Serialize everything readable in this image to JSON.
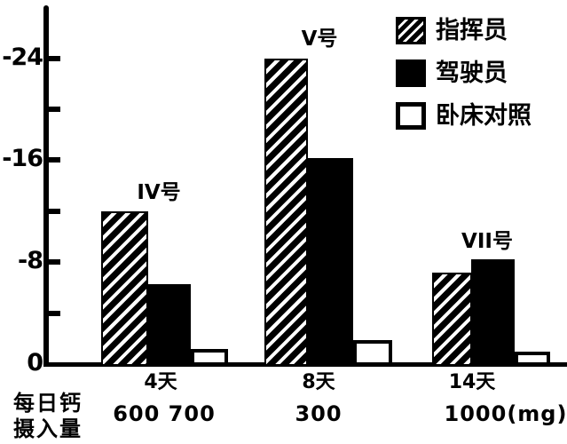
{
  "chart_data": {
    "type": "bar",
    "title": "",
    "categories": [
      "IV号",
      "V号",
      "VII号"
    ],
    "series": [
      {
        "name": "指挥员",
        "pattern": "hatched",
        "values": [
          -12,
          -24,
          -7.2
        ]
      },
      {
        "name": "驾驶员",
        "pattern": "solid",
        "values": [
          -6.3,
          -16.2,
          -8.2
        ]
      },
      {
        "name": "卧床对照",
        "pattern": "open",
        "values": [
          -1.2,
          -1.9,
          -1.0
        ]
      }
    ],
    "x_axis": {
      "duration_labels": [
        "4天",
        "8天",
        "14天"
      ],
      "intake_labels": [
        "600 700",
        "300",
        "1000(mg)"
      ],
      "caption_line1": "每日钙",
      "caption_line2": "摄入量"
    },
    "y_axis": {
      "ticks": [
        {
          "value": -24,
          "label": "-24"
        },
        {
          "value": -20,
          "label": ""
        },
        {
          "value": -16,
          "label": "-16"
        },
        {
          "value": -12,
          "label": ""
        },
        {
          "value": -8,
          "label": "-8"
        },
        {
          "value": -4,
          "label": ""
        },
        {
          "value": 0,
          "label": "0"
        }
      ],
      "range": [
        0,
        -28
      ],
      "direction": "negative-upward"
    },
    "legend_position": "top-right",
    "grid": false
  },
  "colors": {
    "ink": "#000000",
    "paper": "#ffffff"
  }
}
